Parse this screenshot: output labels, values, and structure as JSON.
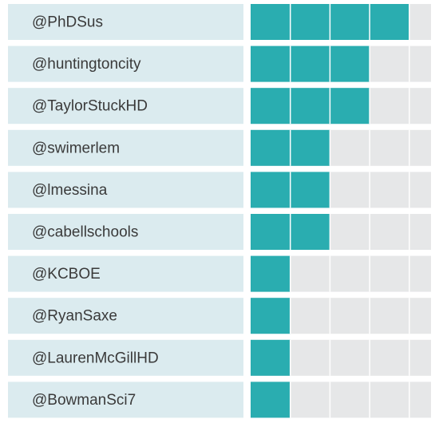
{
  "chart_data": {
    "type": "hbar",
    "categories": [
      "@PhDSus",
      "@huntingtoncity",
      "@TaylorStuckHD",
      "@swimerlem",
      "@lmessina",
      "@cabellschools",
      "@KCBOE",
      "@RyanSaxe",
      "@LaurenMcGillHD",
      "@BowmanSci7"
    ],
    "values": [
      4,
      3,
      3,
      2,
      2,
      2,
      1,
      1,
      1,
      1
    ],
    "color": "#2aadb0",
    "xlim": [
      0,
      5
    ]
  }
}
